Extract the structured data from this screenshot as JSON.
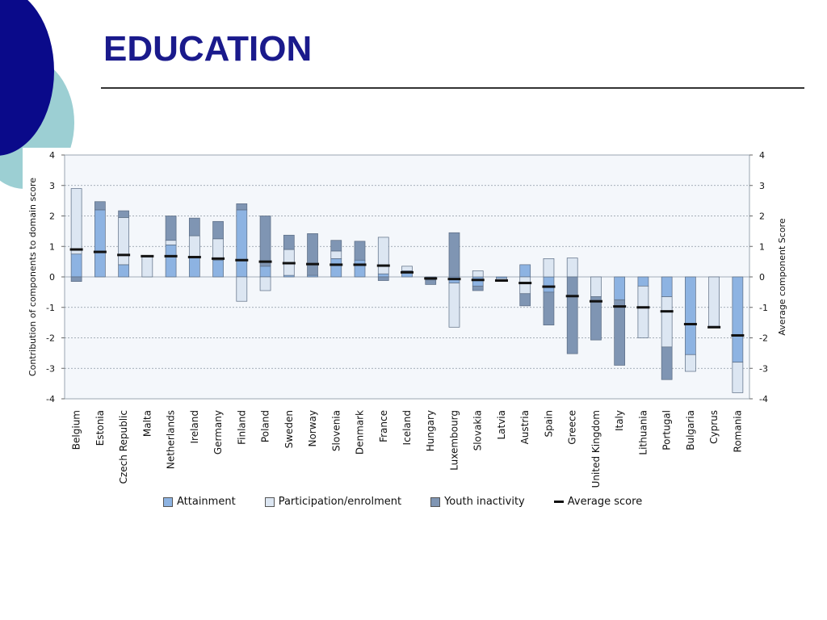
{
  "slide": {
    "title": "EDUCATION"
  },
  "colors": {
    "attainment": "#8db3e2",
    "participation": "#dce6f2",
    "youth_inactivity": "#7f95b3",
    "average": "#111111",
    "plot_bg": "#f4f7fb",
    "title": "#1a1a8c",
    "deco_dark": "#0a0a8a",
    "deco_light": "#9ccfd3"
  },
  "legend": [
    {
      "key": "attainment",
      "label": "Attainment",
      "icon": "square-swatch"
    },
    {
      "key": "participation",
      "label": "Participation/enrolment",
      "icon": "square-swatch"
    },
    {
      "key": "youth_inactivity",
      "label": "Youth inactivity",
      "icon": "square-swatch"
    },
    {
      "key": "average",
      "label": "Average score",
      "icon": "line-swatch"
    }
  ],
  "chart_data": {
    "type": "bar",
    "stacked": true,
    "ylabel_left": "Contribution of components to domain score",
    "ylabel_right": "Average component Score",
    "ylim": [
      -4,
      4
    ],
    "yticks": [
      4,
      3,
      2,
      1,
      0,
      -1,
      -2,
      -3,
      -4
    ],
    "grid": true,
    "legend_position": "bottom",
    "categories": [
      "Belgium",
      "Estonia",
      "Czech Republic",
      "Malta",
      "Netherlands",
      "Ireland",
      "Germany",
      "Finland",
      "Poland",
      "Sweden",
      "Norway",
      "Slovenia",
      "Denmark",
      "France",
      "Iceland",
      "Hungary",
      "Luxembourg",
      "Slovakia",
      "Latvia",
      "Austria",
      "Spain",
      "Greece",
      "United Kingdom",
      "Italy",
      "Lithuania",
      "Portugal",
      "Bulgaria",
      "Cyprus",
      "Romania"
    ],
    "series": [
      {
        "name": "Attainment",
        "key": "attainment",
        "values": [
          0.75,
          2.2,
          0.4,
          0,
          1.05,
          0.65,
          0.55,
          2.2,
          0.35,
          0.05,
          0.05,
          0.6,
          0.55,
          0.1,
          0.2,
          -0.1,
          -0.2,
          -0.3,
          -0.05,
          0.4,
          -0.5,
          0,
          0,
          -0.75,
          -0.3,
          -0.65,
          -2.55,
          0,
          -2.8
        ]
      },
      {
        "name": "Participation/enrolment",
        "key": "participation",
        "values": [
          2.15,
          0,
          1.55,
          0.7,
          0.15,
          0.7,
          0.7,
          -0.8,
          -0.45,
          0.85,
          0,
          0.25,
          0,
          1.2,
          0.15,
          0,
          -1.45,
          0.2,
          -0.1,
          -0.55,
          0.6,
          0.62,
          -0.65,
          0,
          -1.7,
          -1.65,
          -0.55,
          -1.62,
          -1.0
        ]
      },
      {
        "name": "Youth inactivity",
        "key": "youth_inactivity",
        "values": [
          -0.15,
          0.27,
          0.22,
          0,
          0.8,
          0.58,
          0.57,
          0.2,
          1.65,
          0.47,
          1.37,
          0.35,
          0.62,
          -0.12,
          0,
          -0.15,
          1.45,
          -0.15,
          0,
          -0.4,
          -1.08,
          -2.52,
          -1.42,
          -2.15,
          0,
          -1.07,
          0,
          0,
          0
        ]
      }
    ],
    "average": [
      0.9,
      0.82,
      0.72,
      0.68,
      0.68,
      0.65,
      0.6,
      0.55,
      0.5,
      0.45,
      0.42,
      0.4,
      0.4,
      0.37,
      0.15,
      -0.05,
      -0.07,
      -0.1,
      -0.12,
      -0.2,
      -0.32,
      -0.63,
      -0.8,
      -0.97,
      -1.0,
      -1.13,
      -1.55,
      -1.65,
      -1.92
    ]
  }
}
